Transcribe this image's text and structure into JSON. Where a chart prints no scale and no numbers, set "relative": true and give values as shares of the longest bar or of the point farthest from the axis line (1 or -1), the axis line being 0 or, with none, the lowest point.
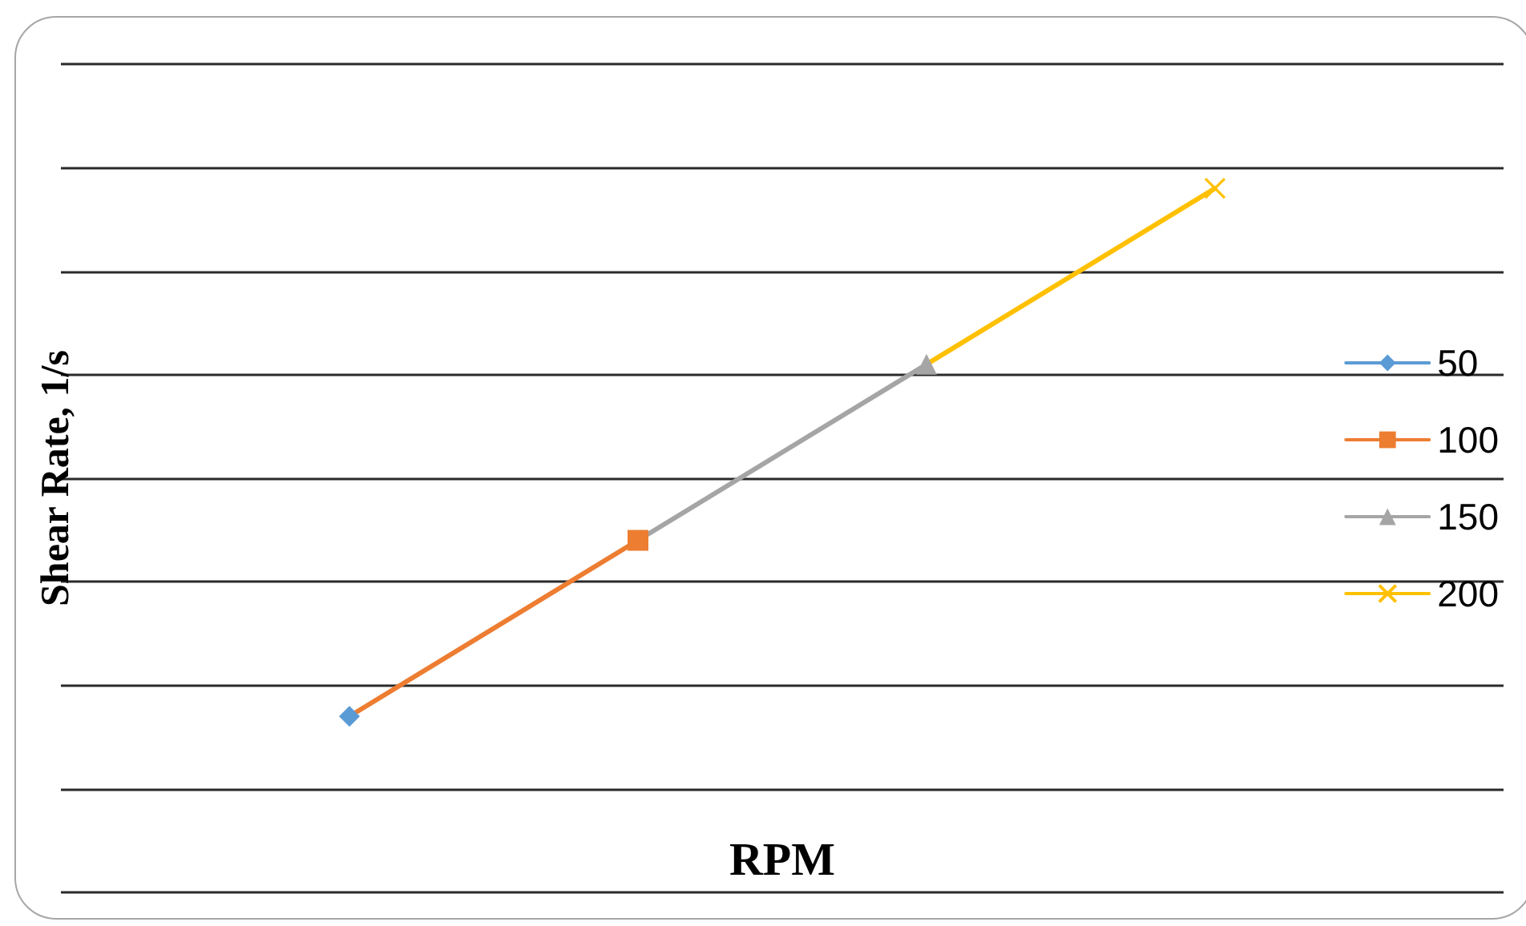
{
  "chart_data": {
    "type": "line",
    "xlabel": "RPM",
    "ylabel": "Shear Rate, 1/s",
    "relative": true,
    "grid": "y",
    "legend": "right",
    "line_style": "solid",
    "categories": [
      null,
      null,
      null,
      null,
      null,
      null
    ],
    "series": [
      {
        "name": "50",
        "color": "#5b9bd5",
        "marker": "diamond",
        "values": [
          null,
          0.25,
          null,
          null,
          null,
          null
        ]
      },
      {
        "name": "100",
        "color": "#ed7d31",
        "marker": "square",
        "values": [
          null,
          0.25,
          0.5,
          null,
          null,
          null
        ]
      },
      {
        "name": "150",
        "color": "#a5a5a5",
        "marker": "triangle",
        "values": [
          null,
          null,
          0.5,
          0.75,
          null,
          null
        ]
      },
      {
        "name": "200",
        "color": "#ffc000",
        "marker": "cross",
        "values": [
          null,
          null,
          null,
          0.75,
          1,
          null
        ]
      }
    ]
  }
}
